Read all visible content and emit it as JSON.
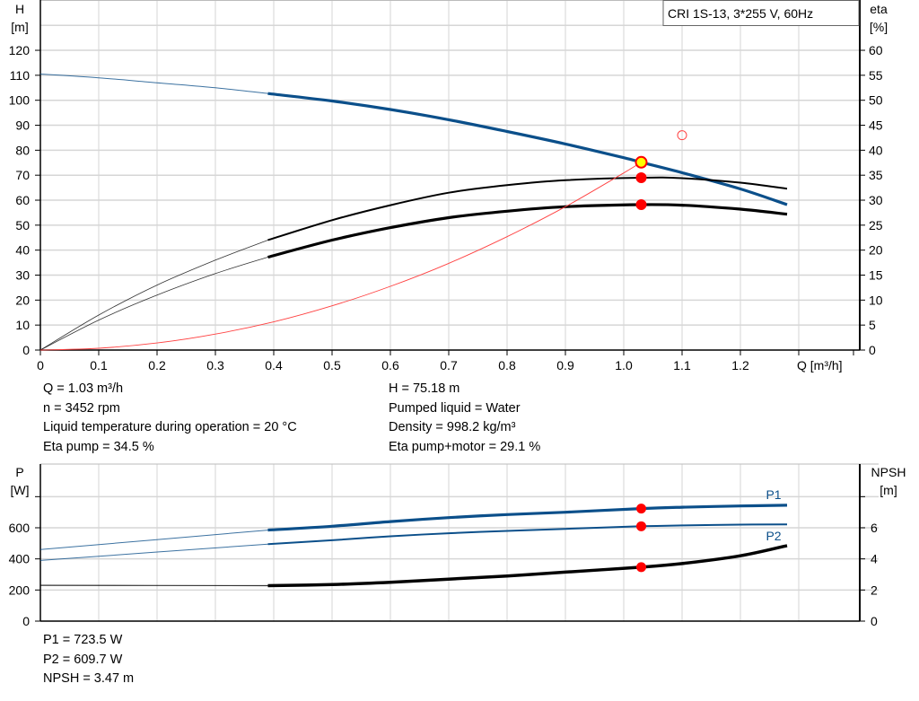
{
  "legend_box": "CRI 1S-13, 3*255 V, 60Hz",
  "chart_data": [
    {
      "type": "line",
      "title": "",
      "xlabel": "Q [m³/h]",
      "ylabel_left": {
        "name": "H",
        "unit": "[m]"
      },
      "ylabel_right": {
        "name": "eta",
        "unit": "[%]"
      },
      "xlim": [
        0,
        1.4
      ],
      "ylim_left": [
        0,
        130
      ],
      "ylim_right": [
        0,
        65
      ],
      "x_ticks": [
        "0",
        "0.1",
        "0.2",
        "0.3",
        "0.4",
        "0.5",
        "0.6",
        "0.7",
        "0.8",
        "0.9",
        "1.0",
        "1.1",
        "1.2"
      ],
      "y_ticks_left": [
        "0",
        "10",
        "20",
        "30",
        "40",
        "50",
        "60",
        "70",
        "80",
        "90",
        "100",
        "110",
        "120"
      ],
      "y_ticks_right": [
        "0",
        "5",
        "10",
        "15",
        "20",
        "25",
        "30",
        "35",
        "40",
        "45",
        "50",
        "55",
        "60"
      ],
      "grid": true,
      "operating_range_q": [
        0.39,
        1.28
      ],
      "series": [
        {
          "id": "H",
          "axis": "left",
          "color": "#0b4f8a",
          "x": [
            0,
            0.1,
            0.2,
            0.3,
            0.39,
            0.5,
            0.6,
            0.7,
            0.8,
            0.9,
            1.0,
            1.03,
            1.1,
            1.2,
            1.28
          ],
          "y": [
            110.5,
            109,
            107,
            105,
            102.7,
            99.7,
            96.3,
            92.2,
            87.5,
            82.5,
            77,
            75.18,
            71,
            64.5,
            58.2
          ]
        },
        {
          "id": "eta_pump",
          "axis": "right",
          "color": "#000000",
          "x": [
            0,
            0.1,
            0.2,
            0.3,
            0.39,
            0.5,
            0.6,
            0.7,
            0.8,
            0.9,
            1.03,
            1.1,
            1.2,
            1.28
          ],
          "y": [
            0,
            7,
            13,
            18,
            22,
            26,
            29,
            31.5,
            33,
            34,
            34.5,
            34.4,
            33.5,
            32.3
          ]
        },
        {
          "id": "eta_pump_motor",
          "axis": "right",
          "color": "#000000",
          "x": [
            0,
            0.1,
            0.2,
            0.3,
            0.39,
            0.5,
            0.6,
            0.7,
            0.8,
            0.9,
            1.03,
            1.1,
            1.2,
            1.28
          ],
          "y": [
            0,
            6,
            11,
            15.3,
            18.6,
            22,
            24.5,
            26.5,
            27.8,
            28.7,
            29.1,
            29,
            28.2,
            27.2
          ]
        },
        {
          "id": "system_curve",
          "axis": "left",
          "color": "#ff4040",
          "x": [
            0,
            0.1,
            0.2,
            0.3,
            0.4,
            0.5,
            0.6,
            0.7,
            0.8,
            0.9,
            1.0,
            1.03
          ],
          "y": [
            0,
            0.71,
            2.84,
            6.38,
            11.3,
            17.7,
            25.5,
            34.7,
            45.4,
            57.4,
            70.9,
            75.18
          ]
        }
      ],
      "points": [
        {
          "id": "duty_point",
          "x": 1.03,
          "y": 75.18,
          "axis": "left",
          "fill": "#ffff00",
          "stroke": "#ff0000"
        },
        {
          "id": "eta_pump_point",
          "x": 1.03,
          "y": 34.5,
          "axis": "right",
          "fill": "#ff0000",
          "stroke": "#ff0000"
        },
        {
          "id": "eta_pump_motor_point",
          "x": 1.03,
          "y": 29.1,
          "axis": "right",
          "fill": "#ff0000",
          "stroke": "#ff0000"
        },
        {
          "id": "requested_point",
          "x": 1.1,
          "y": 86,
          "axis": "left",
          "fill": "none",
          "stroke": "#ff4040"
        }
      ]
    },
    {
      "type": "line",
      "title": "",
      "ylabel_left": {
        "name": "P",
        "unit": "[W]"
      },
      "ylabel_right": {
        "name": "NPSH",
        "unit": "[m]"
      },
      "xlim": [
        0,
        1.4
      ],
      "ylim_left": [
        0,
        950
      ],
      "ylim_right": [
        0,
        9.5
      ],
      "y_ticks_left": [
        "0",
        "200",
        "400",
        "600",
        ""
      ],
      "y_ticks_right": [
        "0",
        "2",
        "4",
        "6",
        ""
      ],
      "grid": true,
      "series": [
        {
          "id": "P1",
          "name": "P1",
          "axis": "left",
          "color": "#0b4f8a",
          "x": [
            0,
            0.39,
            0.5,
            0.6,
            0.7,
            0.8,
            0.9,
            1.03,
            1.1,
            1.2,
            1.28
          ],
          "y": [
            460,
            585,
            610,
            640,
            665,
            685,
            700,
            723.5,
            732,
            740,
            745
          ]
        },
        {
          "id": "P2",
          "name": "P2",
          "axis": "left",
          "color": "#0b4f8a",
          "x": [
            0,
            0.39,
            0.5,
            0.6,
            0.7,
            0.8,
            0.9,
            1.03,
            1.1,
            1.2,
            1.28
          ],
          "y": [
            390,
            495,
            520,
            545,
            565,
            580,
            593,
            609.7,
            615,
            620,
            622
          ]
        },
        {
          "id": "NPSH",
          "axis": "right",
          "color": "#000000",
          "x": [
            0,
            0.39,
            0.5,
            0.6,
            0.7,
            0.8,
            0.9,
            1.03,
            1.1,
            1.2,
            1.28
          ],
          "y": [
            2.3,
            2.28,
            2.35,
            2.5,
            2.7,
            2.9,
            3.15,
            3.47,
            3.7,
            4.2,
            4.85
          ]
        }
      ],
      "points": [
        {
          "id": "p1_point",
          "x": 1.03,
          "y": 723.5,
          "axis": "left"
        },
        {
          "id": "p2_point",
          "x": 1.03,
          "y": 609.7,
          "axis": "left"
        },
        {
          "id": "npsh_point",
          "x": 1.03,
          "y": 3.47,
          "axis": "right"
        }
      ]
    }
  ],
  "info_top_left": [
    "Q = 1.03 m³/h",
    "n = 3452 rpm",
    "Liquid temperature during operation = 20 °C",
    "Eta pump = 34.5 %"
  ],
  "info_top_right": [
    "H = 75.18 m",
    "Pumped liquid = Water",
    "Density = 998.2 kg/m³",
    "Eta pump+motor = 29.1 %"
  ],
  "info_bottom": [
    "P1 = 723.5 W",
    "P2 = 609.7 W",
    "NPSH = 3.47 m"
  ]
}
